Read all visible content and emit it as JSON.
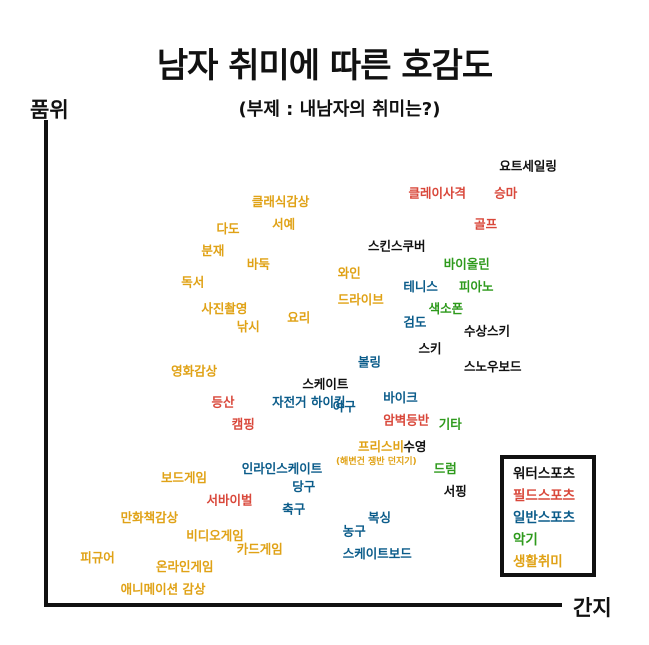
{
  "title": "남자 취미에 따른 호감도",
  "subtitle": "(부제 : 내남자의 취미는?)",
  "chart_data": {
    "type": "scatter",
    "title": "남자 취미에 따른 호감도",
    "subtitle": "(부제 : 내남자의 취미는?)",
    "xlabel": "간지",
    "ylabel": "품위",
    "xlim": [
      0,
      100
    ],
    "ylim": [
      0,
      100
    ],
    "grid": false,
    "legend_position": "bottom-right",
    "categories": [
      {
        "name": "워터스포츠",
        "color": "#111111"
      },
      {
        "name": "필드스포츠",
        "color": "#d9483b"
      },
      {
        "name": "일반스포츠",
        "color": "#0b5c8a"
      },
      {
        "name": "악기",
        "color": "#2e9a1c"
      },
      {
        "name": "생활취미",
        "color": "#e0a216"
      }
    ],
    "points": [
      {
        "label": "요트세일링",
        "category": "워터스포츠",
        "x": 87,
        "y": 92
      },
      {
        "label": "클레이사격",
        "category": "필드스포츠",
        "x": 69,
        "y": 86
      },
      {
        "label": "승마",
        "category": "필드스포츠",
        "x": 86,
        "y": 86
      },
      {
        "label": "클래식감상",
        "category": "생활취미",
        "x": 38,
        "y": 84
      },
      {
        "label": "골프",
        "category": "필드스포츠",
        "x": 82,
        "y": 79
      },
      {
        "label": "다도",
        "category": "생활취미",
        "x": 31,
        "y": 78
      },
      {
        "label": "서예",
        "category": "생활취미",
        "x": 42,
        "y": 79
      },
      {
        "label": "스킨스쿠버",
        "category": "워터스포츠",
        "x": 61,
        "y": 74
      },
      {
        "label": "분재",
        "category": "생활취미",
        "x": 28,
        "y": 73
      },
      {
        "label": "바둑",
        "category": "생활취미",
        "x": 37,
        "y": 70
      },
      {
        "label": "바이올린",
        "category": "악기",
        "x": 76,
        "y": 70
      },
      {
        "label": "와인",
        "category": "생활취미",
        "x": 55,
        "y": 68
      },
      {
        "label": "독서",
        "category": "생활취미",
        "x": 24,
        "y": 66
      },
      {
        "label": "테니스",
        "category": "일반스포츠",
        "x": 68,
        "y": 65
      },
      {
        "label": "피아노",
        "category": "악기",
        "x": 79,
        "y": 65
      },
      {
        "label": "드라이브",
        "category": "생활취미",
        "x": 55,
        "y": 62
      },
      {
        "label": "사진촬영",
        "category": "생활취미",
        "x": 28,
        "y": 60
      },
      {
        "label": "색소폰",
        "category": "악기",
        "x": 73,
        "y": 60
      },
      {
        "label": "요리",
        "category": "생활취미",
        "x": 45,
        "y": 58
      },
      {
        "label": "낚시",
        "category": "생활취미",
        "x": 35,
        "y": 56
      },
      {
        "label": "검도",
        "category": "일반스포츠",
        "x": 68,
        "y": 57
      },
      {
        "label": "수상스키",
        "category": "워터스포츠",
        "x": 80,
        "y": 55
      },
      {
        "label": "스키",
        "category": "워터스포츠",
        "x": 71,
        "y": 51
      },
      {
        "label": "스노우보드",
        "category": "워터스포츠",
        "x": 80,
        "y": 47
      },
      {
        "label": "볼링",
        "category": "일반스포츠",
        "x": 59,
        "y": 48
      },
      {
        "label": "영화감상",
        "category": "생활취미",
        "x": 22,
        "y": 46
      },
      {
        "label": "스케이트",
        "category": "워터스포츠",
        "x": 48,
        "y": 43
      },
      {
        "label": "바이크",
        "category": "일반스포츠",
        "x": 64,
        "y": 40
      },
      {
        "label": "등산",
        "category": "필드스포츠",
        "x": 30,
        "y": 39
      },
      {
        "label": "자전거 하이킹",
        "category": "일반스포츠",
        "x": 42,
        "y": 39
      },
      {
        "label": "야구",
        "category": "일반스포츠",
        "x": 54,
        "y": 38
      },
      {
        "label": "캠핑",
        "category": "필드스포츠",
        "x": 34,
        "y": 34
      },
      {
        "label": "암벽등반",
        "category": "필드스포츠",
        "x": 64,
        "y": 35
      },
      {
        "label": "기타",
        "category": "악기",
        "x": 75,
        "y": 34
      },
      {
        "label": "프리스비",
        "category": "생활취미",
        "x": 59,
        "y": 29
      },
      {
        "label": "수영",
        "category": "워터스포츠",
        "x": 68,
        "y": 29
      },
      {
        "label": "인라인스케이트",
        "category": "일반스포츠",
        "x": 36,
        "y": 24
      },
      {
        "label": "드럼",
        "category": "악기",
        "x": 74,
        "y": 24
      },
      {
        "label": "보드게임",
        "category": "생활취미",
        "x": 20,
        "y": 22
      },
      {
        "label": "당구",
        "category": "일반스포츠",
        "x": 46,
        "y": 20
      },
      {
        "label": "서핑",
        "category": "워터스포츠",
        "x": 76,
        "y": 19
      },
      {
        "label": "서바이벌",
        "category": "필드스포츠",
        "x": 29,
        "y": 17
      },
      {
        "label": "축구",
        "category": "일반스포츠",
        "x": 44,
        "y": 15
      },
      {
        "label": "만화책감상",
        "category": "생활취미",
        "x": 12,
        "y": 13
      },
      {
        "label": "복싱",
        "category": "일반스포츠",
        "x": 61,
        "y": 13
      },
      {
        "label": "농구",
        "category": "일반스포츠",
        "x": 56,
        "y": 10
      },
      {
        "label": "비디오게임",
        "category": "생활취미",
        "x": 25,
        "y": 9
      },
      {
        "label": "카드게임",
        "category": "생활취미",
        "x": 35,
        "y": 6
      },
      {
        "label": "스케이트보드",
        "category": "일반스포츠",
        "x": 56,
        "y": 5
      },
      {
        "label": "피규어",
        "category": "생활취미",
        "x": 4,
        "y": 4
      },
      {
        "label": "온라인게임",
        "category": "생활취미",
        "x": 19,
        "y": 2
      },
      {
        "label": "애니메이션 감상",
        "category": "생활취미",
        "x": 12,
        "y": -3
      }
    ],
    "annotations": [
      {
        "text": "(해변건 쟁반 던지기)",
        "attached_to": "프리스비",
        "category": "생활취미"
      }
    ]
  }
}
